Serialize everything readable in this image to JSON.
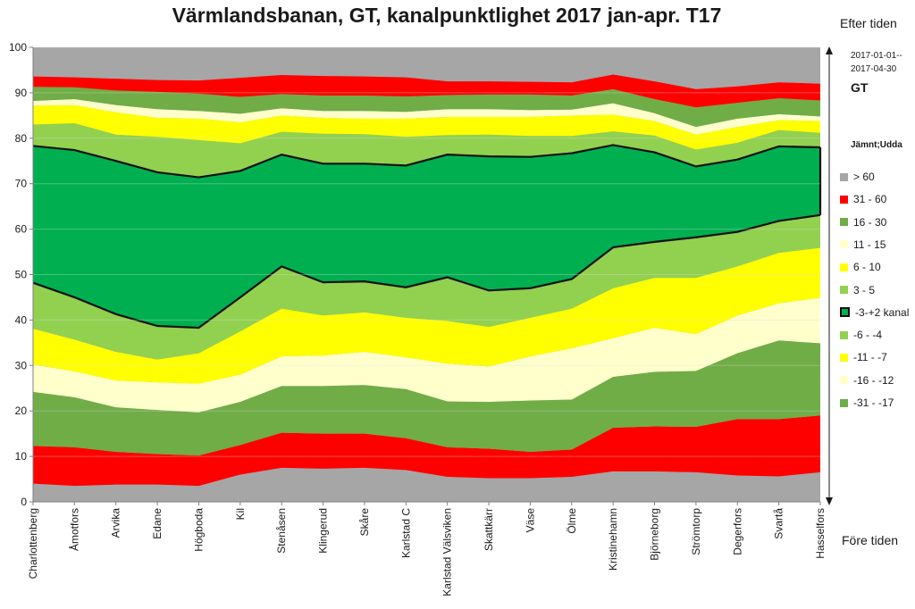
{
  "chart_data": {
    "type": "area",
    "title": "Värmlandsbanan, GT, kanalpunktlighet 2017 jan-apr. T17",
    "upper_label": "Efter tiden",
    "lower_label": "Före tiden",
    "period_start": "2017-01-01--",
    "period_end": "2017-04-30",
    "series_label": "GT",
    "legend_title": "Jämnt;Udda",
    "ylim": [
      0,
      100
    ],
    "yticks": [
      "0",
      "10",
      "20",
      "30",
      "40",
      "50",
      "60",
      "70",
      "80",
      "90",
      "100"
    ],
    "grid": true,
    "legend_position": "right",
    "categories": [
      "Charlottenberg",
      "Åmotfors",
      "Arvika",
      "Edane",
      "Högboda",
      "Kil",
      "Stenåsen",
      "Klingerud",
      "Skåre",
      "Karlstad C",
      "Karlstad Välsviken",
      "Skattkärr",
      "Väse",
      "Ölme",
      "Kristinehamn",
      "Björneborg",
      "Strömtorp",
      "Degerfors",
      "Svartå",
      "Hasselfors"
    ],
    "boundaries": [
      [
        4,
        3.5,
        3.8,
        3.8,
        3.5,
        6,
        7.5,
        7.3,
        7.5,
        7,
        5.5,
        5.2,
        5.2,
        5.5,
        6.7,
        6.7,
        6.5,
        5.8,
        5.6,
        6.5
      ],
      [
        12.3,
        12,
        11,
        10.5,
        10.2,
        12.5,
        15.2,
        15,
        15,
        14,
        12,
        11.7,
        11,
        11.5,
        16.3,
        16.6,
        16.5,
        18.2,
        18.2,
        19
      ],
      [
        24.2,
        23,
        20.8,
        20.2,
        19.7,
        22,
        25.5,
        25.5,
        25.7,
        24.8,
        22.1,
        22,
        22.3,
        22.5,
        27.5,
        28.6,
        28.8,
        32.7,
        35.5,
        34.9
      ],
      [
        30.2,
        28.7,
        26.7,
        26.3,
        26,
        28,
        32,
        32.2,
        33,
        31.8,
        30.4,
        29.8,
        32,
        33.8,
        36,
        38.3,
        36.9,
        41,
        43.7,
        44.9
      ],
      [
        38.1,
        35.7,
        33,
        31.3,
        32.7,
        37.5,
        42.5,
        41,
        41.7,
        40.5,
        39.8,
        38.5,
        40.5,
        42.5,
        47,
        49.3,
        49.3,
        51.8,
        54.8,
        55.9
      ],
      [
        48.2,
        45,
        41.3,
        38.7,
        38.3,
        45,
        51.8,
        48.3,
        48.5,
        47.2,
        49.4,
        46.5,
        47,
        49,
        56,
        57.2,
        58.2,
        59.4,
        61.8,
        63.1
      ],
      [
        78.3,
        77.4,
        75,
        72.5,
        71.4,
        72.8,
        76.4,
        74.4,
        74.4,
        74,
        76.4,
        76,
        75.9,
        76.7,
        78.5,
        76.9,
        73.8,
        75.3,
        78.2,
        78
      ],
      [
        83,
        83.3,
        80.8,
        80.3,
        79.6,
        78.9,
        81.4,
        81,
        80.9,
        80.3,
        80.7,
        80.8,
        80.5,
        80.5,
        81.5,
        80.6,
        77.5,
        79,
        81.8,
        81.2
      ],
      [
        87.2,
        87.3,
        85.7,
        84.5,
        84.3,
        83.5,
        85,
        84.5,
        84.3,
        84.3,
        84.7,
        84.7,
        84.7,
        85,
        85.2,
        83.8,
        80.8,
        82.5,
        84,
        83.8
      ],
      [
        88.2,
        88.6,
        87.3,
        86.4,
        86,
        85.4,
        86.6,
        86,
        86,
        85.8,
        86.4,
        86.4,
        86.2,
        86.3,
        87.7,
        85.5,
        82.5,
        84.3,
        85.3,
        84.8
      ],
      [
        91.3,
        91.2,
        90.5,
        90.2,
        89.8,
        89.1,
        89.7,
        89.4,
        89.4,
        89.2,
        89.5,
        89.6,
        89.6,
        89.4,
        90.8,
        88.6,
        86.8,
        87.8,
        88.8,
        88.3
      ],
      [
        93.6,
        93.4,
        93.1,
        92.8,
        92.7,
        93.3,
        93.9,
        93.7,
        93.6,
        93.4,
        92.5,
        92.5,
        92.4,
        92.3,
        94,
        92.5,
        90.8,
        91.4,
        92.3,
        92
      ]
    ],
    "series": [
      {
        "name": "-31 - -17",
        "color": "#70AD47"
      },
      {
        "name": "-16 - -12",
        "color": "#FFFFCC"
      },
      {
        "name": "-11 - -7",
        "color": "#FFFF00"
      },
      {
        "name": "-6 - -4",
        "color": "#92D050"
      },
      {
        "name": "-3-+2 kanal",
        "color": "#00B050"
      },
      {
        "name": "3 - 5",
        "color": "#92D050"
      },
      {
        "name": "6 - 10",
        "color": "#FFFF00"
      },
      {
        "name": "11 - 15",
        "color": "#FFFFCC"
      },
      {
        "name": "16 - 30",
        "color": "#70AD47"
      },
      {
        "name": "31 - 60",
        "color": "#FF0000"
      },
      {
        "name": "> 60",
        "color": "#A6A6A6"
      }
    ],
    "bottom_series_color": "#A6A6A6",
    "bottom_series_red": "#FF0000",
    "legend_order": [
      "> 60",
      "31 - 60",
      "16 - 30",
      "11 - 15",
      "6 - 10",
      "3 - 5",
      "-3-+2 kanal",
      "-6 - -4",
      "-11 - -7",
      "-16 - -12",
      "-31 - -17"
    ]
  }
}
